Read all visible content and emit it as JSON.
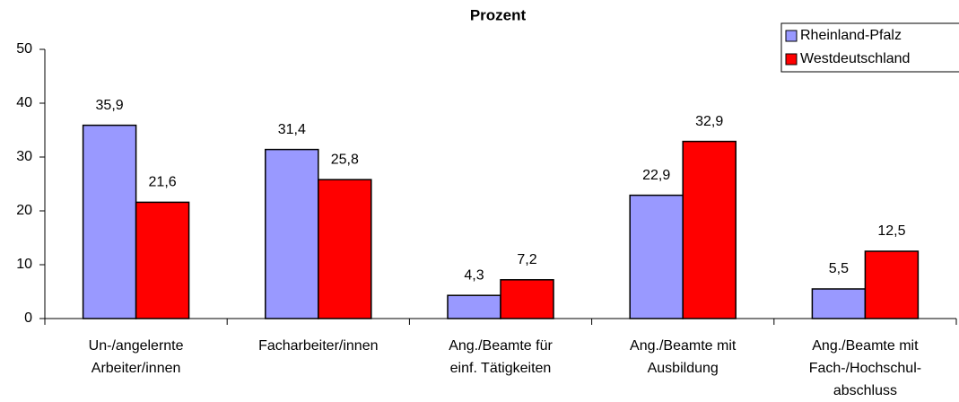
{
  "chart_data": {
    "type": "bar",
    "title": "Prozent",
    "categories": [
      [
        "Un-/angelernte",
        "Arbeiter/innen"
      ],
      [
        "Facharbeiter/innen"
      ],
      [
        "Ang./Beamte für",
        "einf. Tätigkeiten"
      ],
      [
        "Ang./Beamte mit",
        "Ausbildung"
      ],
      [
        "Ang./Beamte mit",
        "Fach-/Hochschul-",
        "abschluss"
      ]
    ],
    "series": [
      {
        "name": "Rheinland-Pfalz",
        "color": "#9999ff",
        "values": [
          35.9,
          31.4,
          4.3,
          22.9,
          5.5
        ],
        "value_labels": [
          "35,9",
          "31,4",
          "4,3",
          "22,9",
          "5,5"
        ]
      },
      {
        "name": "Westdeutschland",
        "color": "#ff0000",
        "values": [
          21.6,
          25.8,
          7.2,
          32.9,
          12.5
        ],
        "value_labels": [
          "21,6",
          "25,8",
          "7,2",
          "32,9",
          "12,5"
        ]
      }
    ],
    "ylim": [
      0,
      50
    ],
    "yticks": [
      0,
      10,
      20,
      30,
      40,
      50
    ],
    "grid": false,
    "legend": "top-right"
  }
}
